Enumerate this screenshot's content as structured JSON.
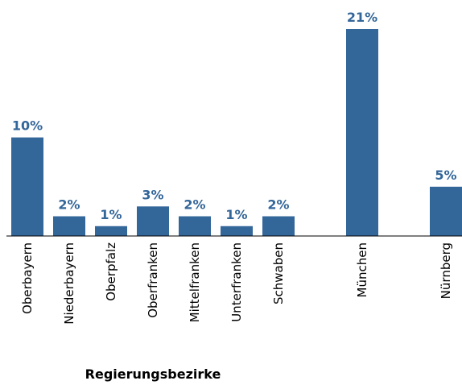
{
  "chart_data": {
    "type": "bar",
    "categories": [
      "Oberbayern",
      "Niederbayern",
      "Oberpfalz",
      "Oberfranken",
      "Mittelfranken",
      "Unterfranken",
      "Schwaben",
      null,
      "München",
      null,
      "Nürnberg"
    ],
    "values": [
      10,
      2,
      1,
      3,
      2,
      1,
      2,
      null,
      21,
      null,
      5
    ],
    "value_labels": [
      "10%",
      "2%",
      "1%",
      "3%",
      "2%",
      "1%",
      "2%",
      null,
      "21%",
      null,
      "5%"
    ],
    "color": "#336699",
    "x_label": "Regierungsbezirke"
  }
}
